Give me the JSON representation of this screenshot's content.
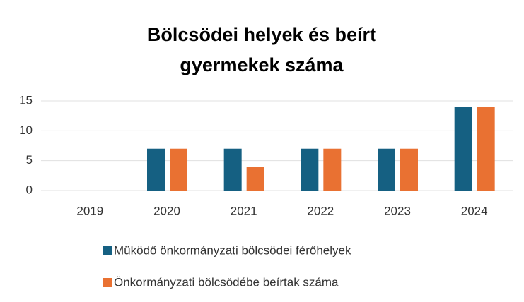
{
  "chart_data": {
    "type": "bar",
    "title": "Bölcsödei helyek és beírt gyermekek száma",
    "categories": [
      "2019",
      "2020",
      "2021",
      "2022",
      "2023",
      "2024"
    ],
    "series": [
      {
        "name": "Müködő önkormányzati bölcsödei férőhelyek",
        "color": "#156082",
        "values": [
          0,
          7,
          7,
          7,
          7,
          14
        ]
      },
      {
        "name": "Önkormányzati bölcsödébe beírtak száma",
        "color": "#e97132",
        "values": [
          0,
          7,
          4,
          7,
          7,
          14
        ]
      }
    ],
    "ylim": [
      0,
      15
    ],
    "yticks": [
      0,
      5,
      10,
      15
    ],
    "grid": true,
    "legend": "bottom"
  }
}
